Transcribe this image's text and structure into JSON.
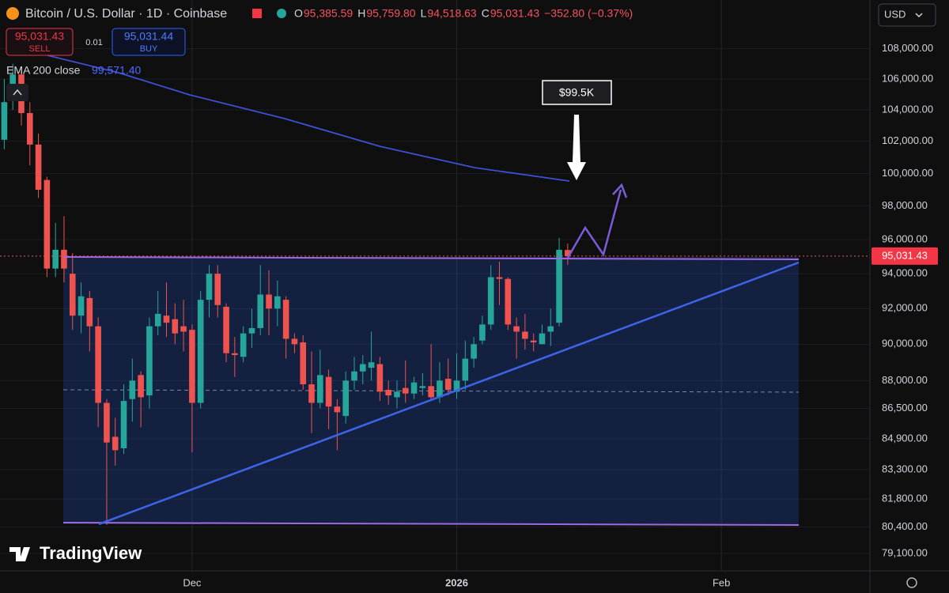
{
  "header": {
    "symbol": "Bitcoin / U.S. Dollar · 1D · Coinbase",
    "ohlc": [
      {
        "key": "O",
        "value": "95,385.59"
      },
      {
        "key": "H",
        "value": "95,759.80"
      },
      {
        "key": "L",
        "value": "94,518.63"
      },
      {
        "key": "C",
        "value": "95,031.43"
      }
    ],
    "change": "−352.80 (−0.37%)"
  },
  "trade": {
    "sell_price": "95,031.43",
    "sell": "SELL",
    "spread": "0.01",
    "buy_price": "95,031.44",
    "buy": "BUY"
  },
  "indicator": {
    "name": "EMA 200 close",
    "value": "99,571.40"
  },
  "currency": "USD",
  "annotation": "$99.5K",
  "watermark": "TradingView",
  "chart_data": {
    "type": "candlestick",
    "log_scale": true,
    "grid": true,
    "up_color": "#26a69a",
    "down_color": "#ef5350",
    "categories": [
      null,
      null,
      null,
      null,
      null,
      null,
      null,
      null,
      null,
      null,
      null,
      null,
      null,
      null,
      null,
      null,
      null,
      null,
      null,
      null,
      null,
      null,
      null,
      null,
      null,
      null,
      null,
      null,
      null,
      null,
      null,
      null,
      null,
      null,
      null,
      null,
      null,
      null,
      null,
      null,
      null,
      null,
      null,
      null,
      null,
      null,
      null,
      null,
      null,
      null,
      null,
      null,
      null,
      null,
      null,
      null,
      null,
      null,
      null,
      null,
      null,
      null,
      null,
      null,
      null,
      null,
      null
    ],
    "open": [
      102100,
      104800,
      106300,
      103800,
      101800,
      99600,
      94300,
      95400,
      94000,
      91600,
      92600,
      91000,
      86800,
      85000,
      84400,
      87000,
      88300,
      87200,
      91000,
      91600,
      91400,
      91000,
      90800,
      86800,
      92500,
      94000,
      92100,
      89500,
      89300,
      90600,
      90900,
      92800,
      92000,
      92500,
      90300,
      90100,
      87800,
      86800,
      88200,
      86600,
      86100,
      88000,
      88500,
      88700,
      88900,
      87500,
      87100,
      87600,
      87300,
      87600,
      87700,
      87100,
      88100,
      87400,
      88000,
      89200,
      90200,
      91100,
      93800,
      93700,
      91000,
      90700,
      90200,
      90000,
      90700,
      91200,
      95385.59
    ],
    "high": [
      106000,
      107000,
      106800,
      104500,
      102500,
      99800,
      97000,
      97400,
      95200,
      93500,
      93000,
      91500,
      87000,
      86000,
      87800,
      89200,
      88500,
      91500,
      93000,
      93500,
      92300,
      92500,
      91100,
      93000,
      94500,
      94500,
      92300,
      90400,
      91000,
      92000,
      94500,
      94200,
      93600,
      92700,
      90600,
      90500,
      89600,
      89700,
      88600,
      87000,
      88500,
      89300,
      89400,
      90700,
      89300,
      88000,
      88000,
      89100,
      88200,
      88400,
      90000,
      89000,
      89200,
      89500,
      90200,
      90400,
      91600,
      94500,
      94700,
      93800,
      91500,
      91700,
      90600,
      91100,
      92000,
      96100,
      95759.8
    ],
    "low": [
      101500,
      104000,
      103000,
      100500,
      98500,
      93800,
      93800,
      93500,
      90800,
      90600,
      89600,
      85500,
      80500,
      83500,
      84100,
      85800,
      85500,
      86500,
      90500,
      90400,
      90000,
      89600,
      84200,
      86500,
      91500,
      91500,
      89000,
      88200,
      89000,
      89800,
      90500,
      90500,
      91000,
      89200,
      89500,
      87500,
      85200,
      86500,
      85400,
      84300,
      85700,
      87500,
      87800,
      88000,
      86900,
      86700,
      86500,
      86800,
      87000,
      87200,
      86900,
      86800,
      87200,
      87000,
      87500,
      88700,
      90000,
      90800,
      92200,
      90800,
      89200,
      89700,
      89600,
      90000,
      89900,
      91000,
      94518.63
    ],
    "close": [
      104500,
      106300,
      103800,
      101800,
      99000,
      94300,
      95400,
      94300,
      91600,
      92700,
      91000,
      86800,
      84700,
      84300,
      86900,
      88000,
      87100,
      91000,
      91700,
      91200,
      90600,
      90700,
      86800,
      92500,
      94000,
      92200,
      89500,
      89400,
      90600,
      90900,
      92800,
      92000,
      92700,
      90300,
      90000,
      87800,
      86800,
      88300,
      86600,
      86300,
      88000,
      88500,
      88900,
      89000,
      87400,
      87200,
      87400,
      87300,
      87900,
      87700,
      87100,
      88000,
      87500,
      88000,
      89200,
      90000,
      91100,
      93800,
      93700,
      91100,
      90700,
      90300,
      90100,
      90600,
      91000,
      95400,
      95031.43
    ],
    "last_price_label": "95,031.43",
    "xlim": [
      -0.5,
      101.4
    ],
    "xticks": [
      {
        "value": 22,
        "label": "Dec"
      },
      {
        "value": 53,
        "label": "2026"
      },
      {
        "value": 84,
        "label": "Feb"
      }
    ],
    "ylim": [
      78250,
      111300
    ],
    "yticks": [
      {
        "value": 108000,
        "label": "108,000.00"
      },
      {
        "value": 106000,
        "label": "106,000.00"
      },
      {
        "value": 104000,
        "label": "104,000.00"
      },
      {
        "value": 102000,
        "label": "102,000.00"
      },
      {
        "value": 100000,
        "label": "100,000.00"
      },
      {
        "value": 98000,
        "label": "98,000.00"
      },
      {
        "value": 96000,
        "label": "96,000.00"
      },
      {
        "value": 94000,
        "label": "94,000.00"
      },
      {
        "value": 92000,
        "label": "92,000.00"
      },
      {
        "value": 90000,
        "label": "90,000.00"
      },
      {
        "value": 88000,
        "label": "88,000.00"
      },
      {
        "value": 86500,
        "label": "86,500.00"
      },
      {
        "value": 84900,
        "label": "84,900.00"
      },
      {
        "value": 83300,
        "label": "83,300.00"
      },
      {
        "value": 81800,
        "label": "81,800.00"
      },
      {
        "value": 80400,
        "label": "80,400.00"
      },
      {
        "value": 79100,
        "label": "79,100.00"
      }
    ]
  }
}
